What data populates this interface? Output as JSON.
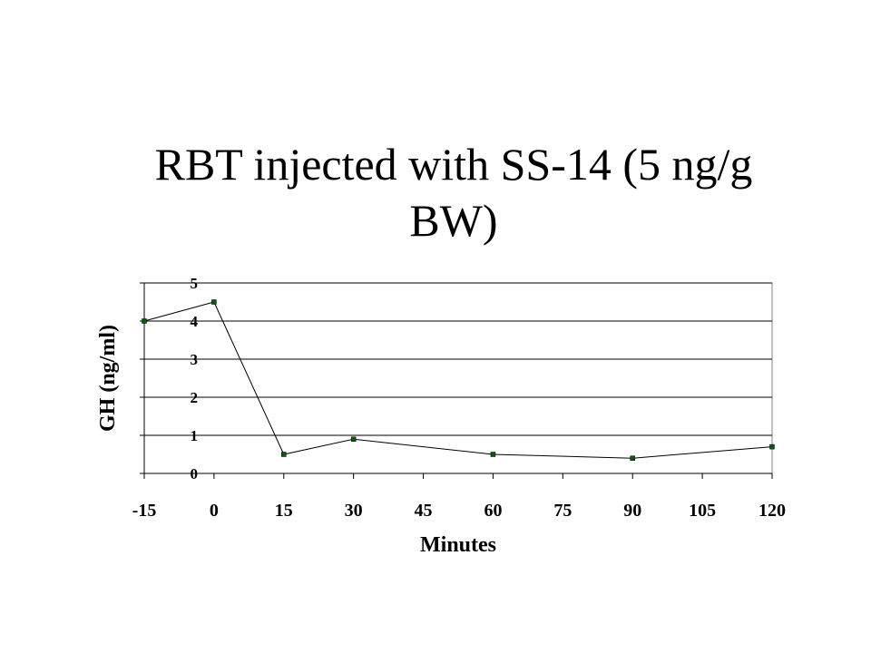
{
  "slide": {
    "title": "RBT injected with SS-14 (5 ng/g BW)"
  },
  "chart_data": {
    "type": "line",
    "title": "",
    "xlabel": "Minutes",
    "ylabel": "GH (ng/ml)",
    "x": [
      -15,
      0,
      15,
      30,
      60,
      90,
      120
    ],
    "series": [
      {
        "values": [
          4.0,
          4.5,
          0.5,
          0.9,
          0.5,
          0.4,
          0.7
        ]
      }
    ],
    "x_ticks": [
      -15,
      0,
      15,
      30,
      45,
      60,
      75,
      90,
      105,
      120
    ],
    "y_ticks": [
      0,
      1,
      2,
      3,
      4,
      5
    ],
    "xlim": [
      -15,
      120
    ],
    "ylim": [
      0,
      5
    ],
    "grid": "horizontal",
    "legend": "none",
    "colors": {
      "line": "#000000",
      "marker": "#0a5a0a",
      "grid": "#000000",
      "plot_border": "#808080"
    }
  }
}
